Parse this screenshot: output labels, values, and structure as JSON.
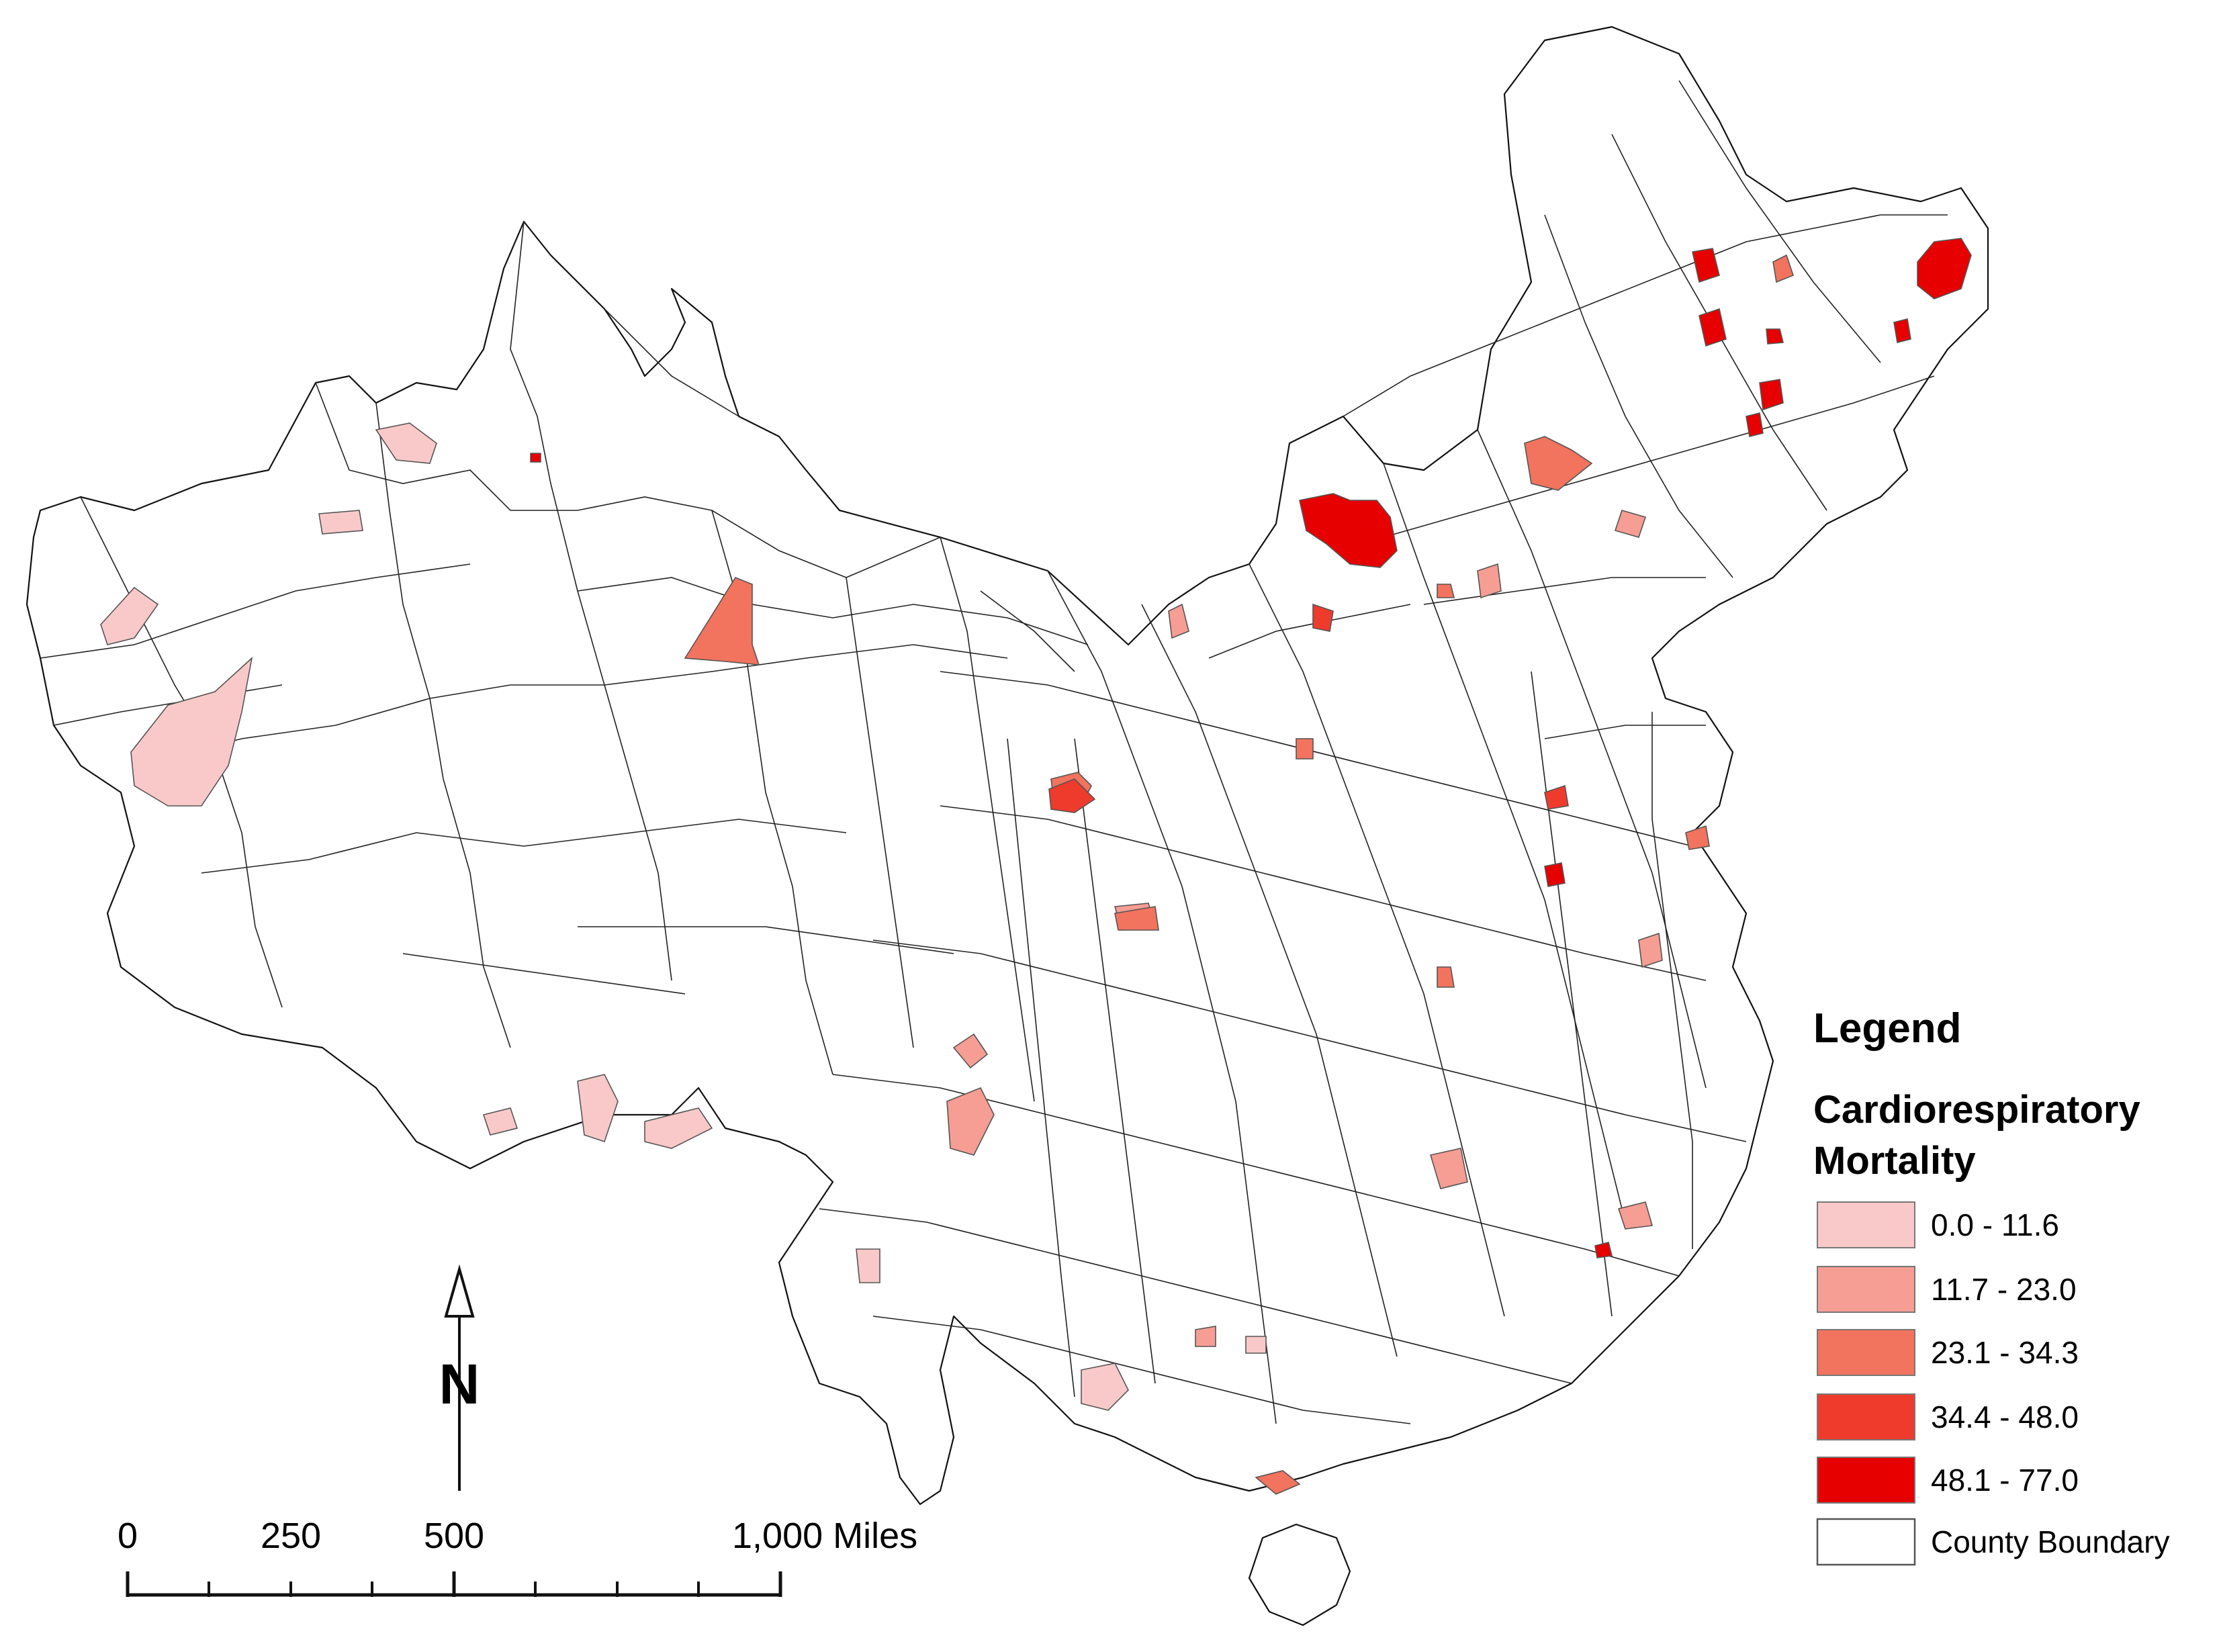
{
  "legend": {
    "title": "Legend",
    "subtitle_line1": "Cardiorespiratory",
    "subtitle_line2": "Mortality",
    "classes": [
      {
        "label": "0.0 - 11.6",
        "color": "#f9c9c9"
      },
      {
        "label": "11.7 - 23.0",
        "color": "#f69d94"
      },
      {
        "label": "23.1 - 34.3",
        "color": "#f2735e"
      },
      {
        "label": "34.4 - 48.0",
        "color": "#ef3b2c"
      },
      {
        "label": "48.1 - 77.0",
        "color": "#e60000"
      }
    ],
    "boundary_label": "County Boundary"
  },
  "scale_bar": {
    "ticks": [
      "0",
      "250",
      "500",
      "1,000 Miles"
    ]
  },
  "north_arrow": {
    "label": "N",
    "icon": "north-arrow-icon"
  }
}
